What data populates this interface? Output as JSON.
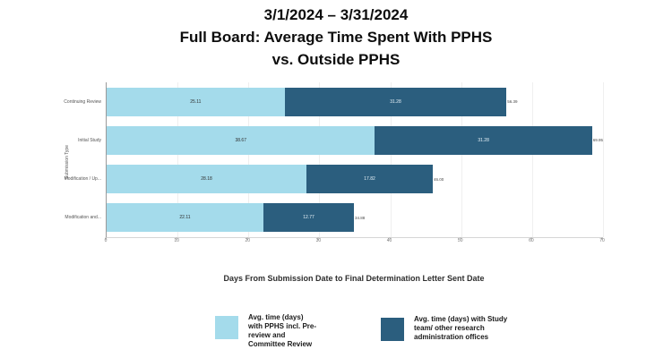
{
  "title": {
    "line1": "3/1/2024 – 3/31/2024",
    "line2": "Full Board: Average Time Spent With PPHS",
    "line3": "vs. Outside PPHS"
  },
  "chart_data": {
    "type": "bar",
    "orientation": "horizontal",
    "stacked": true,
    "categories": [
      "Continuing Review",
      "Initial Study",
      "Modification / Up...",
      "Modification and..."
    ],
    "series": [
      {
        "name": "Avg. time (days) with PPHS incl. Pre-review and Committee Review",
        "color": "#A4DBEB",
        "values": [
          25.11,
          38.67,
          28.18,
          22.11
        ]
      },
      {
        "name": "Avg. time (days) with Study team/ other research administration offices",
        "color": "#2B5E7E",
        "values": [
          31.28,
          31.28,
          17.82,
          12.77
        ]
      }
    ],
    "totals": [
      "56.39",
      "69.95",
      "46.00",
      "34.88"
    ],
    "xlabel": "Days From Submission Date to Final Determination Letter Sent Date",
    "ylabel": "Submission Type",
    "xlim": [
      0,
      70
    ],
    "xticks": [
      0,
      10,
      20,
      30,
      40,
      50,
      60,
      70
    ],
    "grid": true,
    "legend_position": "bottom"
  },
  "legend": {
    "items": [
      {
        "lines": [
          "Avg. time (days)",
          "with PPHS incl. Pre-",
          "review and",
          "Committee Review"
        ]
      },
      {
        "lines": [
          "Avg. time (days) with Study",
          "team/ other research",
          "administration offices"
        ]
      }
    ]
  }
}
